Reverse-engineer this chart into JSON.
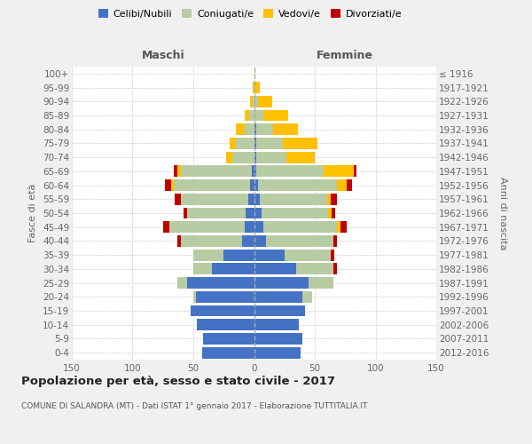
{
  "age_groups": [
    "0-4",
    "5-9",
    "10-14",
    "15-19",
    "20-24",
    "25-29",
    "30-34",
    "35-39",
    "40-44",
    "45-49",
    "50-54",
    "55-59",
    "60-64",
    "65-69",
    "70-74",
    "75-79",
    "80-84",
    "85-89",
    "90-94",
    "95-99",
    "100+"
  ],
  "birth_years": [
    "2012-2016",
    "2007-2011",
    "2002-2006",
    "1997-2001",
    "1992-1996",
    "1987-1991",
    "1982-1986",
    "1977-1981",
    "1972-1976",
    "1967-1971",
    "1962-1966",
    "1957-1961",
    "1952-1956",
    "1947-1951",
    "1942-1946",
    "1937-1941",
    "1932-1936",
    "1927-1931",
    "1922-1926",
    "1917-1921",
    "≤ 1916"
  ],
  "maschi": {
    "celibi": [
      43,
      42,
      47,
      52,
      48,
      55,
      35,
      25,
      10,
      8,
      7,
      5,
      3,
      2,
      0,
      0,
      0,
      0,
      0,
      0,
      0
    ],
    "coniugati": [
      0,
      0,
      0,
      0,
      2,
      8,
      15,
      25,
      50,
      62,
      48,
      55,
      63,
      58,
      18,
      15,
      8,
      4,
      1,
      0,
      0
    ],
    "vedovi": [
      0,
      0,
      0,
      0,
      0,
      0,
      0,
      0,
      0,
      0,
      0,
      0,
      2,
      3,
      5,
      5,
      7,
      4,
      2,
      1,
      0
    ],
    "divorziati": [
      0,
      0,
      0,
      0,
      0,
      0,
      0,
      0,
      3,
      5,
      3,
      5,
      5,
      3,
      0,
      0,
      0,
      0,
      0,
      0,
      0
    ]
  },
  "femmine": {
    "nubili": [
      38,
      40,
      37,
      42,
      40,
      45,
      35,
      25,
      10,
      8,
      6,
      5,
      3,
      2,
      2,
      2,
      2,
      0,
      0,
      0,
      0
    ],
    "coniugate": [
      0,
      0,
      0,
      0,
      8,
      20,
      30,
      38,
      55,
      60,
      55,
      55,
      65,
      55,
      25,
      22,
      14,
      8,
      3,
      1,
      0
    ],
    "vedove": [
      0,
      0,
      0,
      0,
      0,
      0,
      0,
      0,
      0,
      3,
      3,
      3,
      8,
      25,
      23,
      28,
      20,
      20,
      12,
      4,
      1
    ],
    "divorziate": [
      0,
      0,
      0,
      0,
      0,
      0,
      3,
      3,
      3,
      5,
      3,
      5,
      5,
      2,
      0,
      0,
      0,
      0,
      0,
      0,
      0
    ]
  },
  "colors": {
    "celibi_nubili": "#4472c4",
    "coniugati": "#b8cca4",
    "vedovi": "#ffc000",
    "divorziati": "#c00000"
  },
  "title": "Popolazione per età, sesso e stato civile - 2017",
  "subtitle": "COMUNE DI SALANDRA (MT) - Dati ISTAT 1° gennaio 2017 - Elaborazione TUTTITALIA.IT",
  "xlabel_left": "Maschi",
  "xlabel_right": "Femmine",
  "ylabel_left": "Fasce di età",
  "ylabel_right": "Anni di nascita",
  "xlim": 150,
  "background_color": "#f0f0f0",
  "plot_bg": "#ffffff"
}
